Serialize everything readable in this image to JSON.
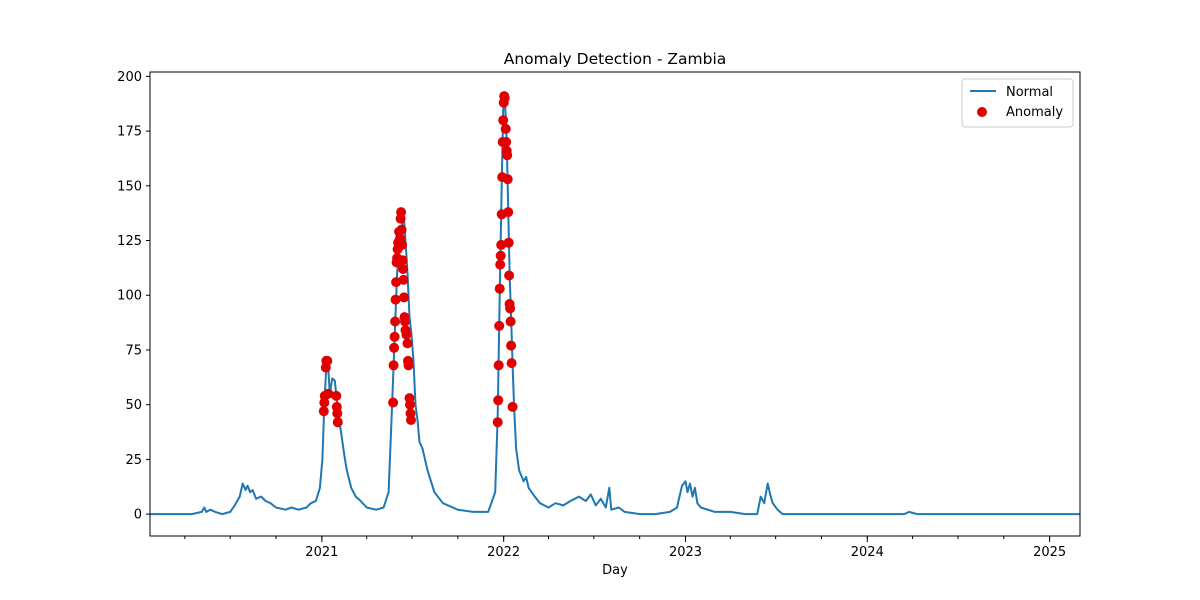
{
  "chart_data": {
    "type": "line",
    "title": "Anomaly Detection - Zambia",
    "xlabel": "Day",
    "ylabel": "",
    "xlim": [
      "2020-01-22",
      "2025-03-03"
    ],
    "ylim": [
      -10,
      202
    ],
    "x_ticks": [
      "2021",
      "2022",
      "2023",
      "2024",
      "2025"
    ],
    "y_ticks": [
      0,
      25,
      50,
      75,
      100,
      125,
      150,
      175,
      200
    ],
    "grid": false,
    "legend": {
      "placement": "top-right",
      "entries": [
        "Normal",
        "Anomaly"
      ]
    },
    "series": [
      {
        "name": "Normal",
        "color": "#1f77b4",
        "points": [
          [
            "2020-01-22",
            0
          ],
          [
            "2020-04-15",
            0
          ],
          [
            "2020-05-05",
            1
          ],
          [
            "2020-05-10",
            3
          ],
          [
            "2020-05-14",
            1
          ],
          [
            "2020-05-22",
            2
          ],
          [
            "2020-06-01",
            1
          ],
          [
            "2020-06-15",
            0
          ],
          [
            "2020-07-01",
            1
          ],
          [
            "2020-07-10",
            4
          ],
          [
            "2020-07-20",
            8
          ],
          [
            "2020-07-26",
            14
          ],
          [
            "2020-08-01",
            11
          ],
          [
            "2020-08-05",
            13
          ],
          [
            "2020-08-10",
            10
          ],
          [
            "2020-08-15",
            11
          ],
          [
            "2020-08-22",
            7
          ],
          [
            "2020-09-01",
            8
          ],
          [
            "2020-09-10",
            6
          ],
          [
            "2020-09-20",
            5
          ],
          [
            "2020-10-01",
            3
          ],
          [
            "2020-10-20",
            2
          ],
          [
            "2020-11-01",
            3
          ],
          [
            "2020-11-15",
            2
          ],
          [
            "2020-12-01",
            3
          ],
          [
            "2020-12-10",
            5
          ],
          [
            "2020-12-20",
            6
          ],
          [
            "2020-12-28",
            12
          ],
          [
            "2021-01-02",
            25
          ],
          [
            "2021-01-06",
            50
          ],
          [
            "2021-01-10",
            67
          ],
          [
            "2021-01-13",
            70
          ],
          [
            "2021-01-17",
            55
          ],
          [
            "2021-01-22",
            62
          ],
          [
            "2021-01-27",
            61
          ],
          [
            "2021-02-01",
            50
          ],
          [
            "2021-02-05",
            43
          ],
          [
            "2021-02-10",
            35
          ],
          [
            "2021-02-15",
            27
          ],
          [
            "2021-02-20",
            20
          ],
          [
            "2021-03-01",
            12
          ],
          [
            "2021-03-10",
            8
          ],
          [
            "2021-03-20",
            6
          ],
          [
            "2021-04-01",
            3
          ],
          [
            "2021-04-20",
            2
          ],
          [
            "2021-05-05",
            3
          ],
          [
            "2021-05-15",
            10
          ],
          [
            "2021-05-22",
            50
          ],
          [
            "2021-05-27",
            80
          ],
          [
            "2021-06-01",
            110
          ],
          [
            "2021-06-05",
            122
          ],
          [
            "2021-06-10",
            130
          ],
          [
            "2021-06-14",
            138
          ],
          [
            "2021-06-18",
            125
          ],
          [
            "2021-06-22",
            110
          ],
          [
            "2021-06-26",
            90
          ],
          [
            "2021-06-30",
            82
          ],
          [
            "2021-07-04",
            70
          ],
          [
            "2021-07-08",
            50
          ],
          [
            "2021-07-12",
            43
          ],
          [
            "2021-07-16",
            33
          ],
          [
            "2021-07-22",
            30
          ],
          [
            "2021-08-01",
            20
          ],
          [
            "2021-08-15",
            10
          ],
          [
            "2021-09-01",
            5
          ],
          [
            "2021-10-01",
            2
          ],
          [
            "2021-11-01",
            1
          ],
          [
            "2021-12-01",
            1
          ],
          [
            "2021-12-15",
            10
          ],
          [
            "2021-12-20",
            45
          ],
          [
            "2021-12-24",
            100
          ],
          [
            "2021-12-28",
            150
          ],
          [
            "2021-12-31",
            185
          ],
          [
            "2022-01-03",
            192
          ],
          [
            "2022-01-07",
            170
          ],
          [
            "2022-01-10",
            140
          ],
          [
            "2022-01-13",
            110
          ],
          [
            "2022-01-16",
            90
          ],
          [
            "2022-01-19",
            68
          ],
          [
            "2022-01-22",
            49
          ],
          [
            "2022-01-26",
            30
          ],
          [
            "2022-02-01",
            20
          ],
          [
            "2022-02-10",
            15
          ],
          [
            "2022-02-15",
            17
          ],
          [
            "2022-02-20",
            12
          ],
          [
            "2022-03-01",
            9
          ],
          [
            "2022-03-15",
            5
          ],
          [
            "2022-04-01",
            3
          ],
          [
            "2022-04-15",
            5
          ],
          [
            "2022-05-01",
            4
          ],
          [
            "2022-05-15",
            6
          ],
          [
            "2022-06-01",
            8
          ],
          [
            "2022-06-15",
            6
          ],
          [
            "2022-06-25",
            9
          ],
          [
            "2022-07-05",
            4
          ],
          [
            "2022-07-15",
            7
          ],
          [
            "2022-07-25",
            3
          ],
          [
            "2022-08-01",
            12
          ],
          [
            "2022-08-05",
            2
          ],
          [
            "2022-08-20",
            3
          ],
          [
            "2022-09-01",
            1
          ],
          [
            "2022-10-01",
            0
          ],
          [
            "2022-11-01",
            0
          ],
          [
            "2022-12-01",
            1
          ],
          [
            "2022-12-15",
            3
          ],
          [
            "2022-12-25",
            13
          ],
          [
            "2023-01-01",
            15
          ],
          [
            "2023-01-05",
            10
          ],
          [
            "2023-01-10",
            14
          ],
          [
            "2023-01-15",
            8
          ],
          [
            "2023-01-20",
            12
          ],
          [
            "2023-01-25",
            5
          ],
          [
            "2023-02-01",
            3
          ],
          [
            "2023-03-01",
            1
          ],
          [
            "2023-04-01",
            1
          ],
          [
            "2023-05-01",
            0
          ],
          [
            "2023-05-25",
            0
          ],
          [
            "2023-06-01",
            8
          ],
          [
            "2023-06-08",
            5
          ],
          [
            "2023-06-15",
            14
          ],
          [
            "2023-06-20",
            9
          ],
          [
            "2023-06-25",
            5
          ],
          [
            "2023-07-05",
            2
          ],
          [
            "2023-07-15",
            0
          ],
          [
            "2024-03-15",
            0
          ],
          [
            "2024-03-25",
            1
          ],
          [
            "2024-04-10",
            0
          ],
          [
            "2024-08-01",
            0
          ],
          [
            "2024-08-15",
            0
          ],
          [
            "2025-03-03",
            0
          ]
        ]
      },
      {
        "name": "Anomaly",
        "color": "#e00000",
        "points": [
          [
            "2021-01-05",
            47
          ],
          [
            "2021-01-06",
            51
          ],
          [
            "2021-01-07",
            54
          ],
          [
            "2021-01-09",
            67
          ],
          [
            "2021-01-10",
            70
          ],
          [
            "2021-01-12",
            70
          ],
          [
            "2021-01-14",
            55
          ],
          [
            "2021-01-30",
            54
          ],
          [
            "2021-01-31",
            49
          ],
          [
            "2021-02-01",
            46
          ],
          [
            "2021-02-02",
            42
          ],
          [
            "2021-05-24",
            51
          ],
          [
            "2021-05-25",
            68
          ],
          [
            "2021-05-26",
            76
          ],
          [
            "2021-05-27",
            81
          ],
          [
            "2021-05-28",
            88
          ],
          [
            "2021-05-29",
            98
          ],
          [
            "2021-05-30",
            106
          ],
          [
            "2021-05-31",
            115
          ],
          [
            "2021-06-01",
            117
          ],
          [
            "2021-06-02",
            121
          ],
          [
            "2021-06-03",
            124
          ],
          [
            "2021-06-05",
            129
          ],
          [
            "2021-06-07",
            126
          ],
          [
            "2021-06-08",
            135
          ],
          [
            "2021-06-09",
            138
          ],
          [
            "2021-06-10",
            130
          ],
          [
            "2021-06-11",
            123
          ],
          [
            "2021-06-12",
            116
          ],
          [
            "2021-06-13",
            112
          ],
          [
            "2021-06-14",
            107
          ],
          [
            "2021-06-15",
            99
          ],
          [
            "2021-06-16",
            90
          ],
          [
            "2021-06-17",
            88
          ],
          [
            "2021-06-18",
            84
          ],
          [
            "2021-06-20",
            82
          ],
          [
            "2021-06-22",
            78
          ],
          [
            "2021-06-23",
            70
          ],
          [
            "2021-06-24",
            68
          ],
          [
            "2021-06-26",
            53
          ],
          [
            "2021-06-27",
            50
          ],
          [
            "2021-06-28",
            46
          ],
          [
            "2021-06-29",
            43
          ],
          [
            "2021-12-20",
            42
          ],
          [
            "2021-12-21",
            52
          ],
          [
            "2021-12-22",
            68
          ],
          [
            "2021-12-23",
            86
          ],
          [
            "2021-12-24",
            103
          ],
          [
            "2021-12-25",
            114
          ],
          [
            "2021-12-26",
            118
          ],
          [
            "2021-12-27",
            123
          ],
          [
            "2021-12-28",
            137
          ],
          [
            "2021-12-29",
            154
          ],
          [
            "2021-12-30",
            170
          ],
          [
            "2021-12-31",
            180
          ],
          [
            "2022-01-01",
            188
          ],
          [
            "2022-01-02",
            191
          ],
          [
            "2022-01-03",
            190
          ],
          [
            "2022-01-05",
            176
          ],
          [
            "2022-01-06",
            170
          ],
          [
            "2022-01-07",
            166
          ],
          [
            "2022-01-08",
            164
          ],
          [
            "2022-01-09",
            153
          ],
          [
            "2022-01-10",
            138
          ],
          [
            "2022-01-11",
            124
          ],
          [
            "2022-01-12",
            109
          ],
          [
            "2022-01-13",
            96
          ],
          [
            "2022-01-14",
            94
          ],
          [
            "2022-01-15",
            88
          ],
          [
            "2022-01-16",
            77
          ],
          [
            "2022-01-17",
            69
          ],
          [
            "2022-01-19",
            49
          ]
        ]
      }
    ]
  }
}
